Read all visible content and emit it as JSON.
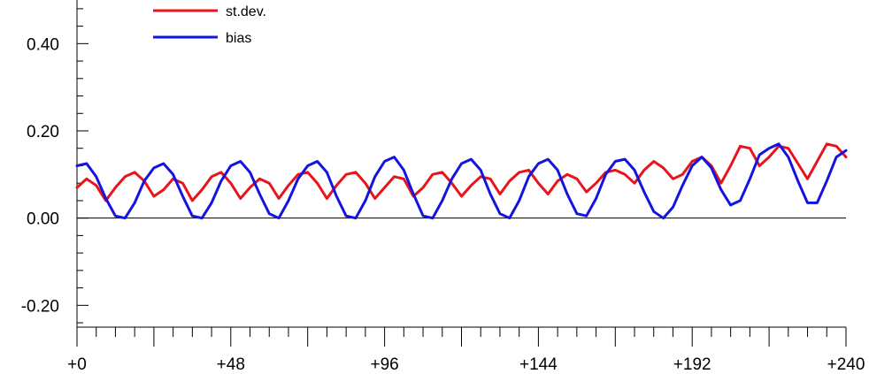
{
  "chart_data": {
    "type": "line",
    "title": "",
    "xlabel": "",
    "ylabel": "",
    "xlim": [
      0,
      240
    ],
    "ylim": [
      -0.25,
      0.5
    ],
    "x_ticks": [
      0,
      48,
      96,
      144,
      192,
      240
    ],
    "x_tick_labels": [
      "+0",
      "+48",
      "+96",
      "+144",
      "+192",
      "+240"
    ],
    "y_ticks": [
      -0.2,
      0.0,
      0.2,
      0.4
    ],
    "y_tick_labels": [
      "-0.20",
      "0.00",
      "0.20",
      "0.40"
    ],
    "zero_line": true,
    "grid": false,
    "legend_position": "top-left",
    "series": [
      {
        "name": "st.dev.",
        "color": "#e8141c",
        "x": [
          0,
          3,
          6,
          9,
          12,
          15,
          18,
          21,
          24,
          27,
          30,
          33,
          36,
          39,
          42,
          45,
          48,
          51,
          54,
          57,
          60,
          63,
          66,
          69,
          72,
          75,
          78,
          81,
          84,
          87,
          90,
          93,
          96,
          99,
          102,
          105,
          108,
          111,
          114,
          117,
          120,
          123,
          126,
          129,
          132,
          135,
          138,
          141,
          144,
          147,
          150,
          153,
          156,
          159,
          162,
          165,
          168,
          171,
          174,
          177,
          180,
          183,
          186,
          189,
          192,
          195,
          198,
          201,
          204,
          207,
          210,
          213,
          216,
          219,
          222,
          225,
          228,
          231,
          234,
          237,
          240
        ],
        "values": [
          0.07,
          0.09,
          0.075,
          0.04,
          0.07,
          0.095,
          0.105,
          0.085,
          0.05,
          0.065,
          0.09,
          0.08,
          0.04,
          0.065,
          0.095,
          0.105,
          0.08,
          0.045,
          0.07,
          0.09,
          0.08,
          0.045,
          0.075,
          0.1,
          0.105,
          0.08,
          0.045,
          0.075,
          0.1,
          0.105,
          0.08,
          0.045,
          0.07,
          0.095,
          0.09,
          0.05,
          0.07,
          0.1,
          0.105,
          0.08,
          0.05,
          0.075,
          0.095,
          0.09,
          0.055,
          0.085,
          0.105,
          0.11,
          0.08,
          0.055,
          0.085,
          0.1,
          0.09,
          0.06,
          0.08,
          0.105,
          0.11,
          0.1,
          0.08,
          0.11,
          0.13,
          0.115,
          0.09,
          0.1,
          0.13,
          0.14,
          0.12,
          0.08,
          0.12,
          0.165,
          0.16,
          0.12,
          0.14,
          0.165,
          0.16,
          0.125,
          0.09,
          0.13,
          0.17,
          0.165,
          0.14
        ]
      },
      {
        "name": "bias",
        "color": "#1414e0",
        "x": [
          0,
          3,
          6,
          9,
          12,
          15,
          18,
          21,
          24,
          27,
          30,
          33,
          36,
          39,
          42,
          45,
          48,
          51,
          54,
          57,
          60,
          63,
          66,
          69,
          72,
          75,
          78,
          81,
          84,
          87,
          90,
          93,
          96,
          99,
          102,
          105,
          108,
          111,
          114,
          117,
          120,
          123,
          126,
          129,
          132,
          135,
          138,
          141,
          144,
          147,
          150,
          153,
          156,
          159,
          162,
          165,
          168,
          171,
          174,
          177,
          180,
          183,
          186,
          189,
          192,
          195,
          198,
          201,
          204,
          207,
          210,
          213,
          216,
          219,
          222,
          225,
          228,
          231,
          234,
          237,
          240
        ],
        "values": [
          0.12,
          0.125,
          0.095,
          0.045,
          0.005,
          0.0,
          0.035,
          0.085,
          0.115,
          0.125,
          0.1,
          0.05,
          0.005,
          0.0,
          0.035,
          0.085,
          0.12,
          0.13,
          0.105,
          0.055,
          0.01,
          0.0,
          0.04,
          0.09,
          0.12,
          0.13,
          0.105,
          0.05,
          0.005,
          0.0,
          0.04,
          0.095,
          0.13,
          0.14,
          0.11,
          0.055,
          0.005,
          0.0,
          0.04,
          0.09,
          0.125,
          0.135,
          0.11,
          0.055,
          0.01,
          0.0,
          0.04,
          0.095,
          0.125,
          0.135,
          0.11,
          0.055,
          0.01,
          0.005,
          0.045,
          0.1,
          0.13,
          0.135,
          0.11,
          0.06,
          0.015,
          0.0,
          0.025,
          0.075,
          0.12,
          0.14,
          0.115,
          0.065,
          0.03,
          0.04,
          0.09,
          0.145,
          0.16,
          0.17,
          0.14,
          0.085,
          0.035,
          0.035,
          0.085,
          0.14,
          0.155
        ]
      }
    ]
  }
}
